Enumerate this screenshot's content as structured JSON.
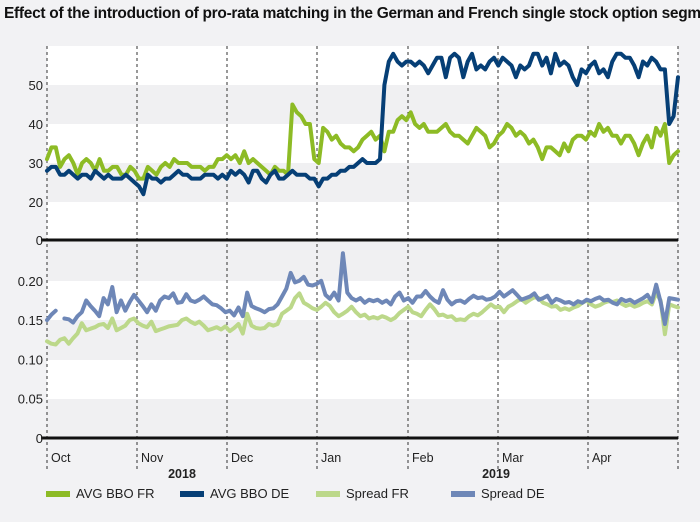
{
  "title": "Effect of the introduction of pro-rata matching in the German and French single stock option segment",
  "chart_data": [
    {
      "type": "line",
      "panel": "top",
      "title": "Effect of the introduction of pro-rata matching in the German and French single stock option segment",
      "xlabel": "",
      "ylabel": "",
      "ylim": [
        0,
        55
      ],
      "yticks": [
        "0",
        "20",
        "30",
        "40",
        "50"
      ],
      "y_axis_broken_below": 20,
      "x_months": [
        "Oct",
        "Nov",
        "Dec",
        "Jan",
        "Feb",
        "Mar",
        "Apr"
      ],
      "x_years": [
        {
          "label": "2018",
          "under": "Nov-Dec"
        },
        {
          "label": "2019",
          "under": "Feb-Mar"
        }
      ],
      "series": [
        {
          "name": "AVG BBO FR",
          "color": "#8dbb25",
          "values": [
            31,
            34,
            34,
            29,
            31,
            32,
            30,
            27,
            30,
            31,
            30,
            28,
            31,
            28,
            28,
            29,
            29,
            27,
            27,
            29,
            28,
            26,
            26,
            29,
            28,
            27,
            29,
            30,
            29,
            31,
            30,
            30,
            30,
            29,
            29,
            29,
            28,
            29,
            29,
            31,
            31,
            32,
            31,
            32,
            30,
            33,
            30,
            31,
            30,
            29,
            28,
            27,
            29,
            28,
            28,
            27,
            45,
            43,
            42,
            40,
            40,
            31,
            30,
            39,
            38,
            36,
            37,
            35,
            34,
            34,
            33,
            34,
            36,
            37,
            38,
            36,
            37,
            33,
            38,
            38,
            41,
            42,
            41,
            43,
            40,
            39,
            40,
            38,
            38,
            38,
            39,
            40,
            38,
            37,
            37,
            36,
            35,
            37,
            39,
            38,
            37,
            34,
            35,
            37,
            38,
            40,
            39,
            37,
            38,
            37,
            35,
            36,
            34,
            31,
            34,
            34,
            33,
            32,
            35,
            33,
            36,
            37,
            37,
            36,
            38,
            37,
            40,
            38,
            39,
            37,
            37,
            35,
            37,
            37,
            35,
            32,
            35,
            37,
            34,
            39,
            37,
            40,
            30,
            32,
            33
          ]
        },
        {
          "name": "AVG BBO DE",
          "color": "#063f76",
          "values": [
            28,
            29,
            29,
            27,
            27,
            28,
            27,
            26,
            27,
            27,
            26,
            28,
            27,
            26,
            27,
            26,
            26,
            26,
            27,
            26,
            25,
            24,
            22,
            27,
            26,
            26,
            25,
            26,
            26,
            27,
            28,
            27,
            27,
            26,
            26,
            26,
            27,
            27,
            27,
            26,
            27,
            26,
            28,
            27,
            28,
            27,
            25,
            28,
            28,
            26,
            25,
            27,
            28,
            26,
            26,
            27,
            28,
            27,
            27,
            27,
            26,
            26,
            24,
            26,
            26,
            27,
            27,
            28,
            28,
            29,
            29,
            30,
            31,
            30,
            30,
            30,
            31,
            50,
            56,
            58,
            56,
            55,
            56,
            56,
            55,
            56,
            55,
            53,
            55,
            57,
            57,
            52,
            57,
            58,
            57,
            52,
            56,
            58,
            54,
            55,
            54,
            56,
            57,
            55,
            57,
            56,
            55,
            52,
            55,
            54,
            55,
            58,
            58,
            55,
            57,
            53,
            58,
            55,
            56,
            55,
            52,
            50,
            54,
            53,
            55,
            56,
            53,
            54,
            52,
            56,
            58,
            58,
            57,
            57,
            55,
            52,
            56,
            55,
            57,
            56,
            54,
            54,
            40,
            42,
            52
          ]
        },
        {
          "name": "Spread FR",
          "color": "#bcd88a",
          "panel": "bottom"
        },
        {
          "name": "Spread DE",
          "color": "#6e87b7",
          "panel": "bottom"
        }
      ]
    },
    {
      "type": "line",
      "panel": "bottom",
      "ylim": [
        0,
        0.25
      ],
      "yticks": [
        "0",
        "0.05",
        "0.10",
        "0.15",
        "0.20"
      ],
      "x_months": [
        "Oct",
        "Nov",
        "Dec",
        "Jan",
        "Feb",
        "Mar",
        "Apr"
      ],
      "series": [
        {
          "name": "Spread FR",
          "color": "#bcd88a",
          "values": [
            0.123,
            0.12,
            0.119,
            0.125,
            0.127,
            0.12,
            0.127,
            0.133,
            0.146,
            0.137,
            0.139,
            0.141,
            0.144,
            0.145,
            0.14,
            0.152,
            0.137,
            0.14,
            0.143,
            0.15,
            0.152,
            0.146,
            0.143,
            0.141,
            0.148,
            0.136,
            0.138,
            0.14,
            0.142,
            0.143,
            0.144,
            0.15,
            0.152,
            0.148,
            0.145,
            0.148,
            0.143,
            0.137,
            0.139,
            0.141,
            0.138,
            0.142,
            0.136,
            0.14,
            0.145,
            0.133,
            0.158,
            0.143,
            0.14,
            0.139,
            0.14,
            0.145,
            0.143,
            0.145,
            0.158,
            0.162,
            0.166,
            0.178,
            0.184,
            0.172,
            0.169,
            0.165,
            0.163,
            0.167,
            0.172,
            0.168,
            0.16,
            0.155,
            0.158,
            0.162,
            0.167,
            0.16,
            0.155,
            0.157,
            0.152,
            0.154,
            0.152,
            0.155,
            0.153,
            0.15,
            0.153,
            0.159,
            0.163,
            0.167,
            0.16,
            0.158,
            0.155,
            0.163,
            0.17,
            0.164,
            0.156,
            0.157,
            0.154,
            0.155,
            0.15,
            0.151,
            0.15,
            0.155,
            0.158,
            0.156,
            0.16,
            0.165,
            0.17,
            0.166,
            0.167,
            0.16,
            0.167,
            0.17,
            0.174,
            0.177,
            0.172,
            0.176,
            0.179,
            0.178,
            0.172,
            0.17,
            0.167,
            0.168,
            0.163,
            0.165,
            0.163,
            0.166,
            0.168,
            0.172,
            0.175,
            0.17,
            0.167,
            0.169,
            0.172,
            0.174,
            0.173,
            0.175,
            0.171,
            0.168,
            0.17,
            0.167,
            0.169,
            0.172,
            0.174,
            0.17,
            0.185,
            0.175,
            0.132,
            0.17,
            0.168,
            0.166
          ]
        },
        {
          "name": "Spread DE",
          "color": "#6e87b7",
          "values": [
            0.15,
            0.157,
            0.162,
            null,
            0.152,
            0.151,
            0.147,
            0.155,
            0.16,
            0.175,
            0.168,
            0.162,
            0.155,
            0.178,
            0.17,
            0.192,
            0.16,
            0.175,
            0.162,
            0.173,
            0.182,
            0.175,
            0.168,
            0.16,
            0.17,
            0.162,
            0.175,
            0.18,
            0.178,
            0.184,
            0.172,
            0.173,
            0.183,
            0.175,
            0.173,
            0.176,
            0.18,
            0.175,
            0.17,
            0.169,
            0.165,
            0.16,
            0.162,
            0.156,
            0.166,
            0.155,
            0.185,
            0.168,
            0.165,
            0.163,
            0.16,
            0.164,
            0.165,
            0.17,
            0.18,
            0.19,
            0.21,
            0.198,
            0.2,
            0.205,
            0.195,
            0.194,
            0.196,
            0.2,
            0.182,
            0.177,
            0.185,
            0.175,
            0.235,
            0.185,
            0.178,
            0.175,
            0.178,
            0.172,
            0.176,
            0.174,
            0.176,
            0.172,
            0.175,
            0.17,
            0.18,
            0.185,
            0.175,
            0.178,
            0.172,
            0.18,
            0.18,
            0.187,
            0.18,
            0.175,
            0.172,
            0.188,
            0.176,
            0.17,
            0.174,
            0.175,
            0.172,
            0.177,
            0.181,
            0.178,
            0.179,
            0.176,
            0.177,
            0.18,
            0.186,
            0.18,
            0.184,
            0.188,
            0.182,
            0.176,
            0.178,
            0.18,
            0.184,
            0.176,
            0.178,
            0.181,
            0.172,
            0.177,
            0.175,
            0.172,
            0.173,
            0.17,
            0.174,
            0.172,
            0.176,
            0.174,
            0.177,
            0.179,
            0.175,
            0.176,
            0.172,
            0.17,
            0.177,
            0.174,
            0.176,
            0.172,
            0.175,
            0.178,
            0.182,
            0.173,
            0.195,
            0.173,
            0.145,
            0.178,
            0.177,
            0.176
          ]
        }
      ]
    }
  ],
  "legend": [
    {
      "label": "AVG BBO FR",
      "color": "#8dbb25"
    },
    {
      "label": "AVG BBO DE",
      "color": "#063f76"
    },
    {
      "label": "Spread FR",
      "color": "#bcd88a"
    },
    {
      "label": "Spread DE",
      "color": "#6e87b7"
    }
  ]
}
